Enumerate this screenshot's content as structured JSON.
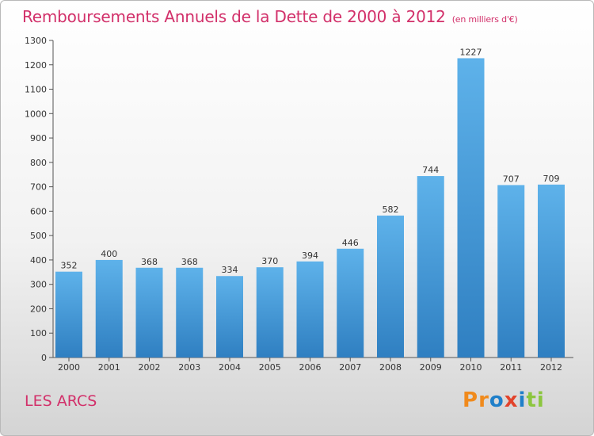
{
  "title": "Remboursements Annuels de la Dette de 2000 à 2012",
  "unit_note": "(en milliers d'€)",
  "commune": "LES ARCS",
  "logo": {
    "text": "Proxiti",
    "letters": [
      "P",
      "r",
      "o",
      "x",
      "i",
      "t",
      "i"
    ]
  },
  "colors": {
    "title": "#d2306a",
    "bar_top": "#5eb2ea",
    "bar_bottom": "#2f7fc1",
    "logo": [
      "#f08a1c",
      "#f08a1c",
      "#1f7fc9",
      "#e2432b",
      "#1f7fc9",
      "#8cc63f",
      "#8cc63f"
    ]
  },
  "chart_data": {
    "type": "bar",
    "categories": [
      "2000",
      "2001",
      "2002",
      "2003",
      "2004",
      "2005",
      "2006",
      "2007",
      "2008",
      "2009",
      "2010",
      "2011",
      "2012"
    ],
    "values": [
      352,
      400,
      368,
      368,
      334,
      370,
      394,
      446,
      582,
      744,
      1227,
      707,
      709
    ],
    "ylim": [
      0,
      1300
    ],
    "yticks": [
      0,
      100,
      200,
      300,
      400,
      500,
      600,
      700,
      800,
      900,
      1000,
      1100,
      1200,
      1300
    ],
    "grid": false,
    "title": "Remboursements Annuels de la Dette de 2000 à 2012",
    "xlabel": "",
    "ylabel": ""
  }
}
